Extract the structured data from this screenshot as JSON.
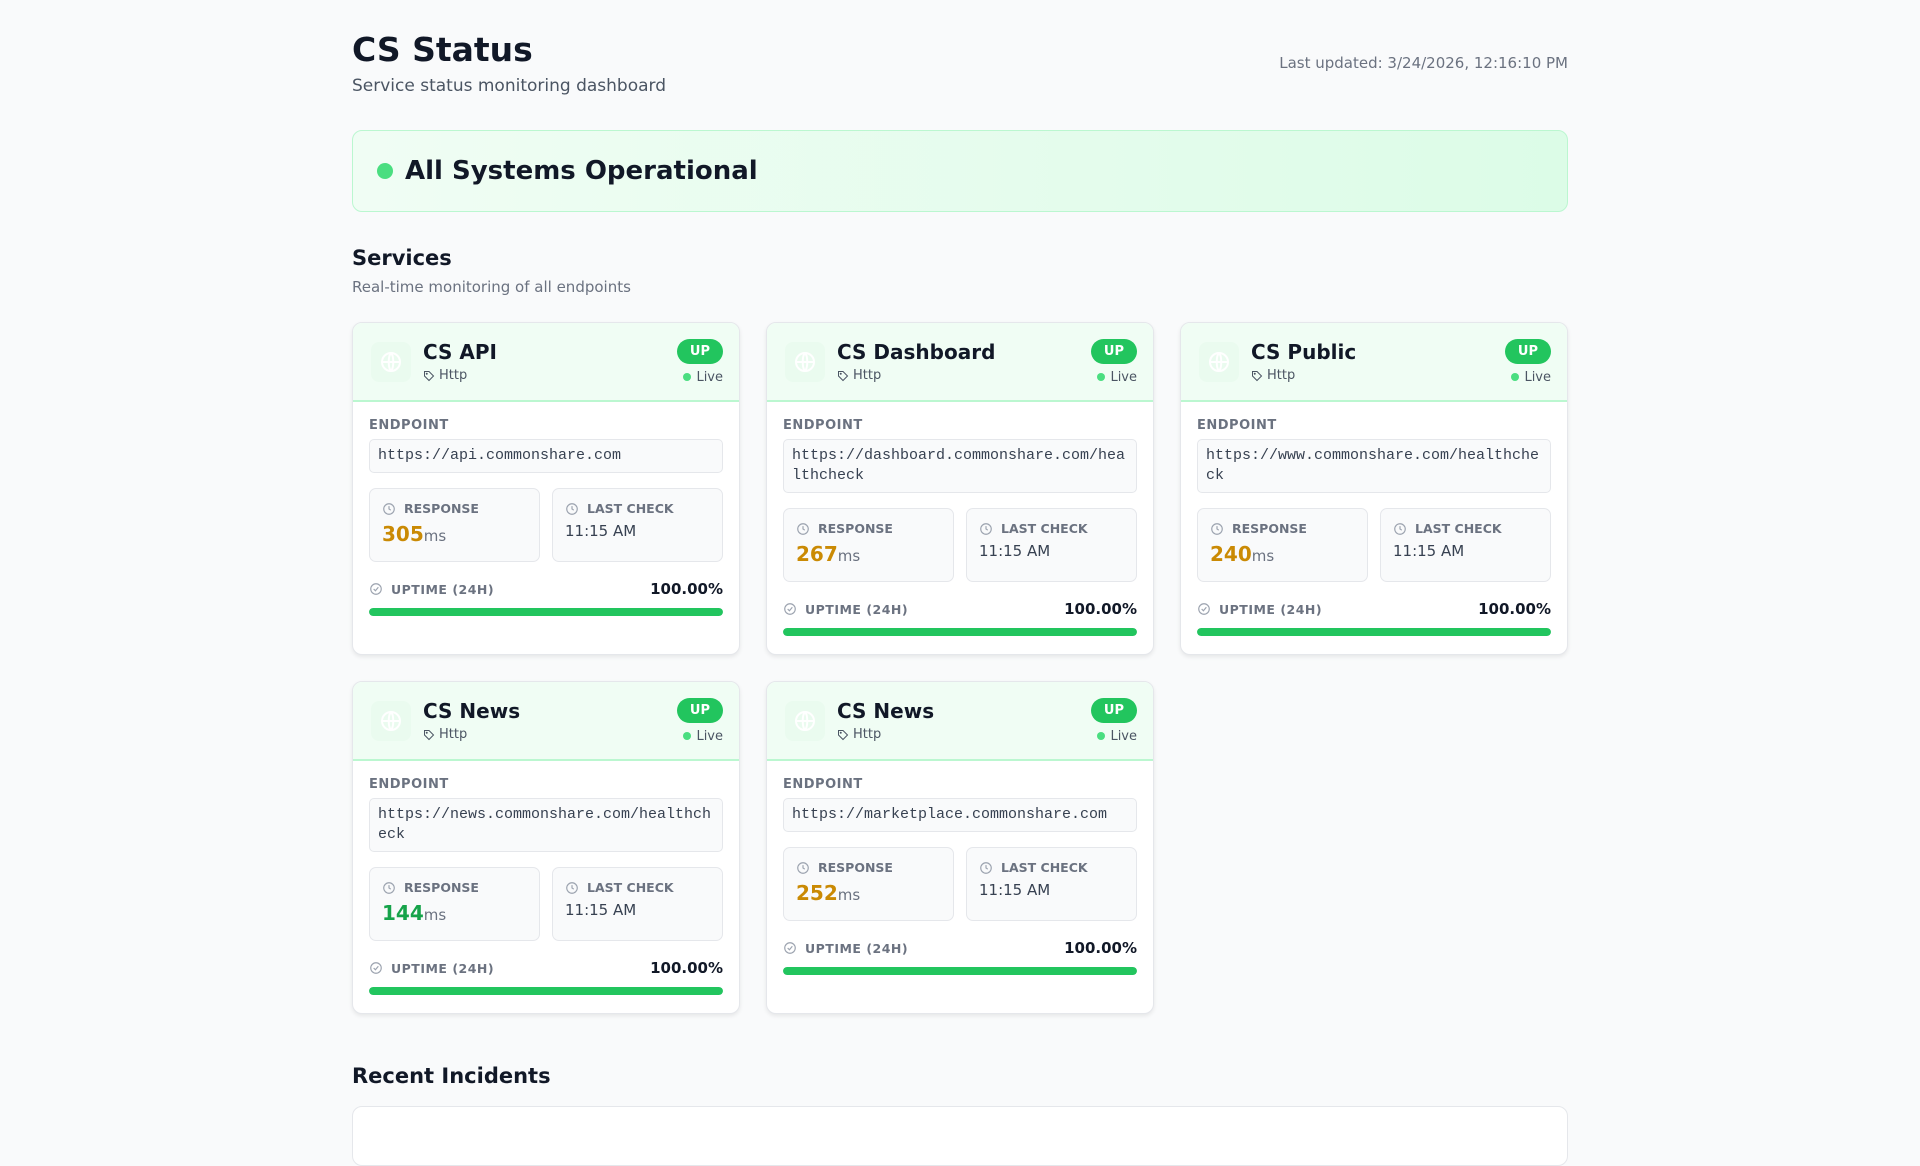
{
  "header": {
    "title": "CS Status",
    "subtitle": "Service status monitoring dashboard",
    "last_updated": "Last updated: 3/24/2026, 12:16:10 PM"
  },
  "banner": {
    "text": "All Systems Operational",
    "color": "#4ade80"
  },
  "services_section": {
    "title": "Services",
    "subtitle": "Real-time monitoring of all endpoints"
  },
  "labels": {
    "endpoint": "ENDPOINT",
    "response": "RESPONSE",
    "last_check": "LAST CHECK",
    "uptime": "UPTIME (24H)",
    "ms": "ms"
  },
  "colors": {
    "up": "#22c55e",
    "amber": "#ca8a04",
    "green": "#16a34a"
  },
  "services": [
    {
      "name": "CS API",
      "type": "Http",
      "status": "UP",
      "live": "Live",
      "endpoint": "https://api.commonshare.com",
      "response": "305",
      "response_color": "#ca8a04",
      "last_check": "11:15 AM",
      "uptime": "100.00%",
      "uptime_pct": 100
    },
    {
      "name": "CS Dashboard",
      "type": "Http",
      "status": "UP",
      "live": "Live",
      "endpoint": "https://dashboard.commonshare.com/healthcheck",
      "response": "267",
      "response_color": "#ca8a04",
      "last_check": "11:15 AM",
      "uptime": "100.00%",
      "uptime_pct": 100
    },
    {
      "name": "CS Public",
      "type": "Http",
      "status": "UP",
      "live": "Live",
      "endpoint": "https://www.commonshare.com/healthcheck",
      "response": "240",
      "response_color": "#ca8a04",
      "last_check": "11:15 AM",
      "uptime": "100.00%",
      "uptime_pct": 100
    },
    {
      "name": "CS News",
      "type": "Http",
      "status": "UP",
      "live": "Live",
      "endpoint": "https://news.commonshare.com/healthcheck",
      "response": "144",
      "response_color": "#16a34a",
      "last_check": "11:15 AM",
      "uptime": "100.00%",
      "uptime_pct": 100
    },
    {
      "name": "CS News",
      "type": "Http",
      "status": "UP",
      "live": "Live",
      "endpoint": "https://marketplace.commonshare.com",
      "response": "252",
      "response_color": "#ca8a04",
      "last_check": "11:15 AM",
      "uptime": "100.00%",
      "uptime_pct": 100
    }
  ],
  "incidents_section": {
    "title": "Recent Incidents"
  }
}
